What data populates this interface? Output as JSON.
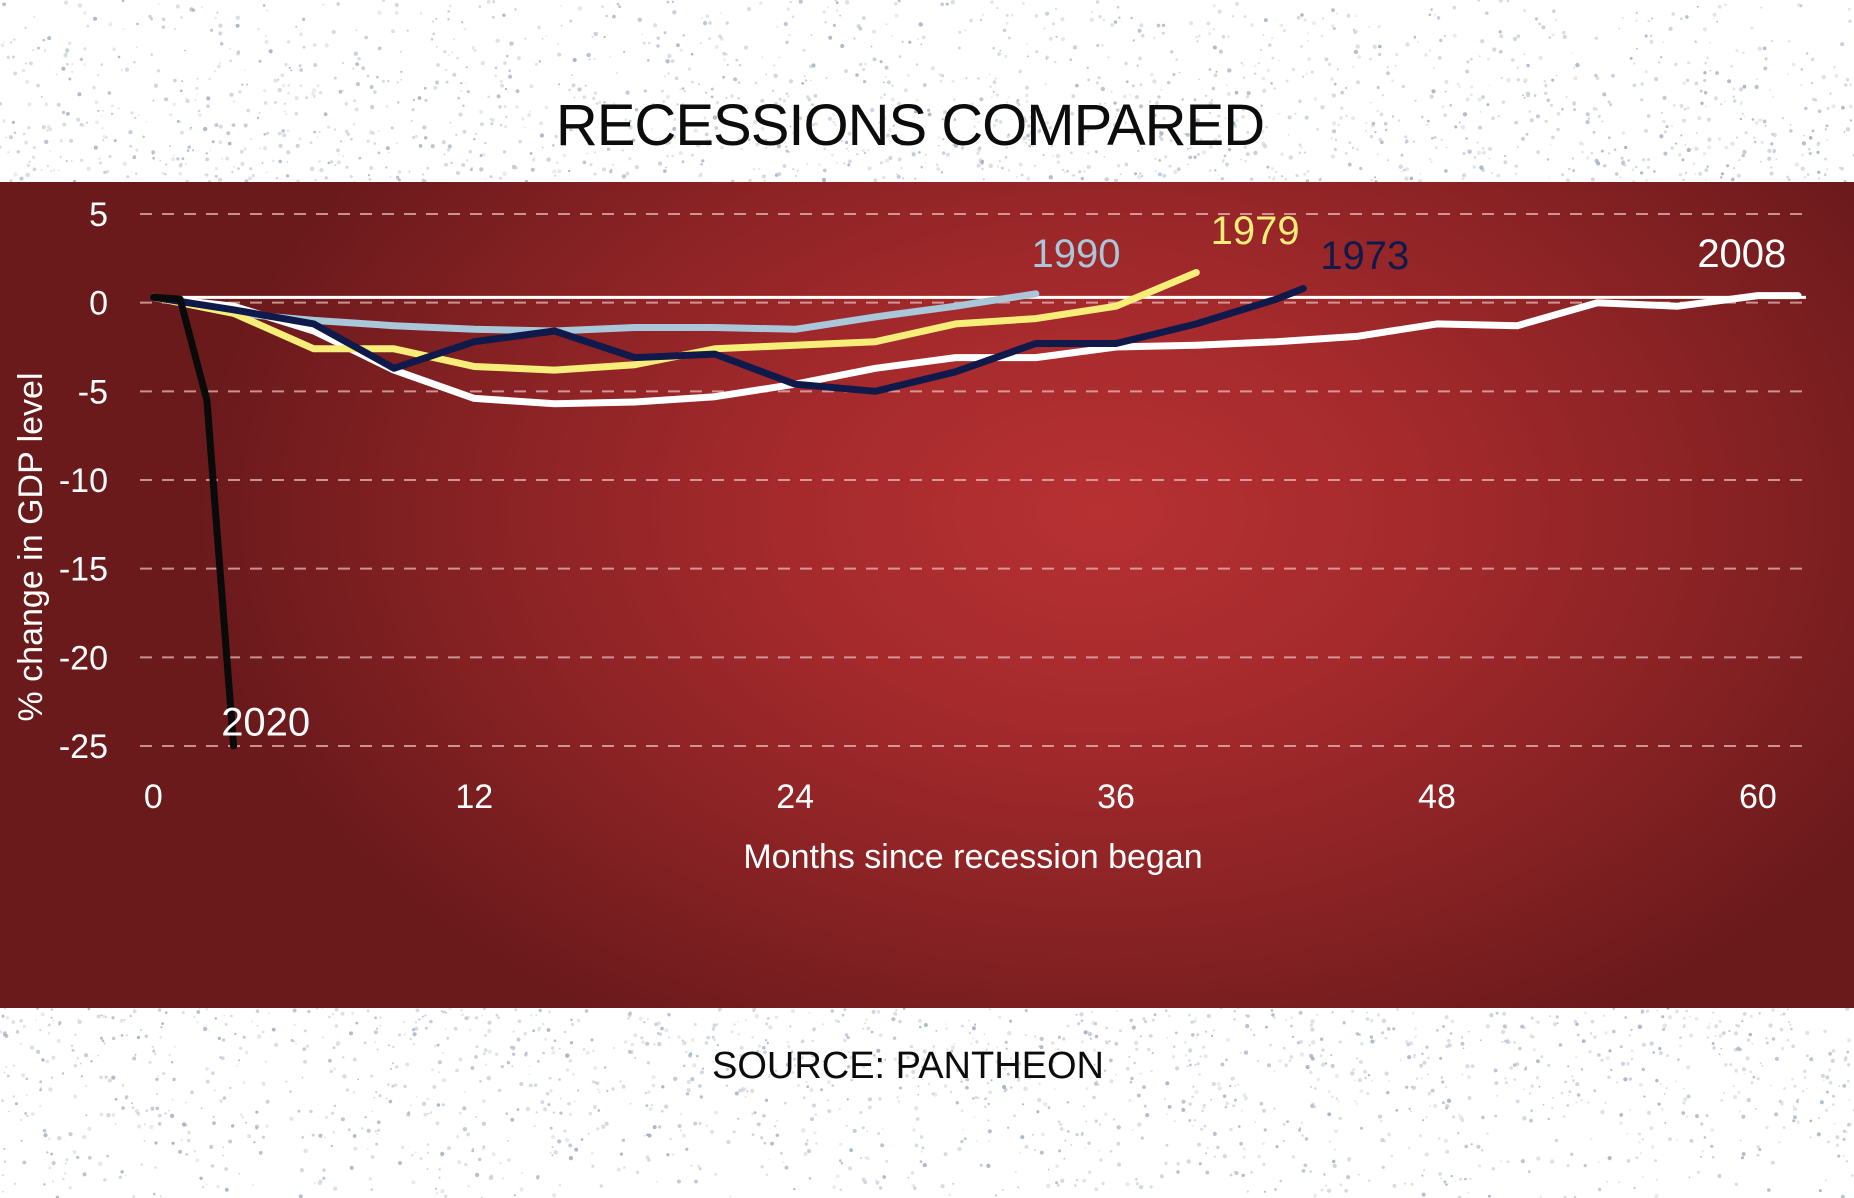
{
  "title": "RECESSIONS COMPARED",
  "source": "SOURCE: PANTHEON",
  "colors": {
    "panel_red": "#a52a2c",
    "line_2008": "#ffffff",
    "line_1990": "#a9c7d8",
    "line_1979": "#f7ee7a",
    "line_1973": "#0f1a4a",
    "line_2020": "#0a0a0a",
    "axis_text": "#ffffff",
    "grid": "#e8b9b9"
  },
  "chart_data": {
    "type": "line",
    "title": "RECESSIONS COMPARED",
    "xlabel": "Months since recession began",
    "ylabel": "% change in GDP level",
    "xlim": [
      -0.5,
      61.8
    ],
    "ylim": [
      -25,
      5
    ],
    "xticks": [
      0,
      12,
      24,
      36,
      48,
      60
    ],
    "xtick_labels": [
      "0",
      "12",
      "24",
      "36",
      "48",
      "60"
    ],
    "yticks": [
      5,
      0,
      -5,
      -10,
      -15,
      -20,
      -25
    ],
    "ytick_labels": [
      "5",
      "0",
      "-5",
      "-10",
      "-15",
      "-20",
      "-25"
    ],
    "grid": "horizontal dashed",
    "reference_line": 0.3,
    "series": [
      {
        "name": "2008",
        "label_x": 59.4,
        "label_y": 2.0,
        "x": [
          0,
          3,
          6,
          9,
          12,
          15,
          18,
          21,
          24,
          27,
          30,
          33,
          36,
          39,
          42,
          45,
          48,
          51,
          54,
          57,
          60,
          61.5
        ],
        "y": [
          0.3,
          -0.2,
          -1.6,
          -3.8,
          -5.4,
          -5.7,
          -5.6,
          -5.3,
          -4.6,
          -3.7,
          -3.1,
          -3.1,
          -2.5,
          -2.4,
          -2.2,
          -1.9,
          -1.2,
          -1.3,
          0.0,
          -0.2,
          0.4,
          0.4
        ]
      },
      {
        "name": "1990",
        "label_x": 34.5,
        "label_y": 2.0,
        "x": [
          0,
          3,
          6,
          9,
          12,
          15,
          18,
          21,
          24,
          27,
          30,
          33
        ],
        "y": [
          0.3,
          -0.6,
          -1.0,
          -1.3,
          -1.5,
          -1.6,
          -1.4,
          -1.4,
          -1.5,
          -0.8,
          -0.2,
          0.5
        ]
      },
      {
        "name": "1979",
        "label_x": 41.2,
        "label_y": 3.3,
        "x": [
          0,
          3,
          6,
          9,
          12,
          15,
          18,
          21,
          24,
          27,
          30,
          33,
          36,
          39
        ],
        "y": [
          0.3,
          -0.6,
          -2.6,
          -2.6,
          -3.6,
          -3.8,
          -3.5,
          -2.6,
          -2.4,
          -2.2,
          -1.2,
          -0.9,
          -0.2,
          1.7
        ]
      },
      {
        "name": "1973",
        "label_x": 45.3,
        "label_y": 1.9,
        "x": [
          0,
          3,
          6,
          9,
          12,
          15,
          18,
          21,
          24,
          27,
          30,
          33,
          36,
          39,
          42,
          43
        ],
        "y": [
          0.3,
          -0.4,
          -1.2,
          -3.7,
          -2.2,
          -1.6,
          -3.1,
          -2.9,
          -4.6,
          -5.0,
          -3.9,
          -2.3,
          -2.3,
          -1.2,
          0.2,
          0.8
        ]
      },
      {
        "name": "2020",
        "label_x": 4.2,
        "label_y": -24.4,
        "x": [
          0,
          1,
          2,
          3
        ],
        "y": [
          0.3,
          0.2,
          -5.5,
          -25
        ]
      }
    ]
  }
}
